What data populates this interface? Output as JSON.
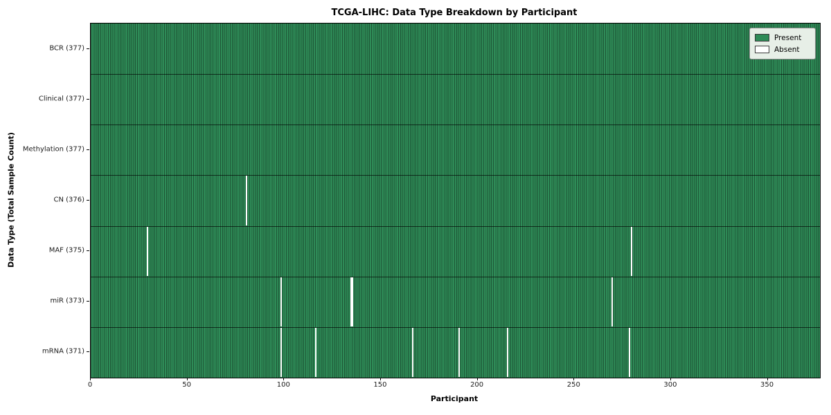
{
  "figure": {
    "title": "TCGA-LIHC: Data Type Breakdown by Participant",
    "xlabel": "Participant",
    "ylabel": "Data Type (Total Sample Count)"
  },
  "legend": {
    "items": [
      {
        "label": "Present",
        "color": "#2e8b57"
      },
      {
        "label": "Absent",
        "color": "#ffffff"
      }
    ]
  },
  "chart_data": {
    "type": "heatmap",
    "title": "TCGA-LIHC: Data Type Breakdown by Participant",
    "xlabel": "Participant",
    "ylabel": "Data Type (Total Sample Count)",
    "legend_entries": [
      "Present",
      "Absent"
    ],
    "legend_position": "upper right",
    "n_participants": 377,
    "xlim": [
      0,
      377
    ],
    "x_ticks": [
      0,
      50,
      100,
      150,
      200,
      250,
      300,
      350
    ],
    "colors": {
      "present": "#2e8b57",
      "present_edge": "#1d5435",
      "absent": "#ffffff",
      "grid_line": "#000000"
    },
    "rows": [
      {
        "label": "BCR (377)",
        "data_type": "BCR",
        "total_sample_count": 377,
        "absent_participants": []
      },
      {
        "label": "Clinical (377)",
        "data_type": "Clinical",
        "total_sample_count": 377,
        "absent_participants": []
      },
      {
        "label": "Methylation (377)",
        "data_type": "Methylation",
        "total_sample_count": 377,
        "absent_participants": []
      },
      {
        "label": "CN (376)",
        "data_type": "CN",
        "total_sample_count": 376,
        "absent_participants": [
          80
        ]
      },
      {
        "label": "MAF (375)",
        "data_type": "MAF",
        "total_sample_count": 375,
        "absent_participants": [
          29,
          279
        ]
      },
      {
        "label": "miR (373)",
        "data_type": "miR",
        "total_sample_count": 373,
        "absent_participants": [
          98,
          134,
          135,
          269
        ]
      },
      {
        "label": "mRNA (371)",
        "data_type": "mRNA",
        "total_sample_count": 371,
        "absent_participants": [
          98,
          116,
          166,
          190,
          215,
          278
        ]
      }
    ]
  }
}
